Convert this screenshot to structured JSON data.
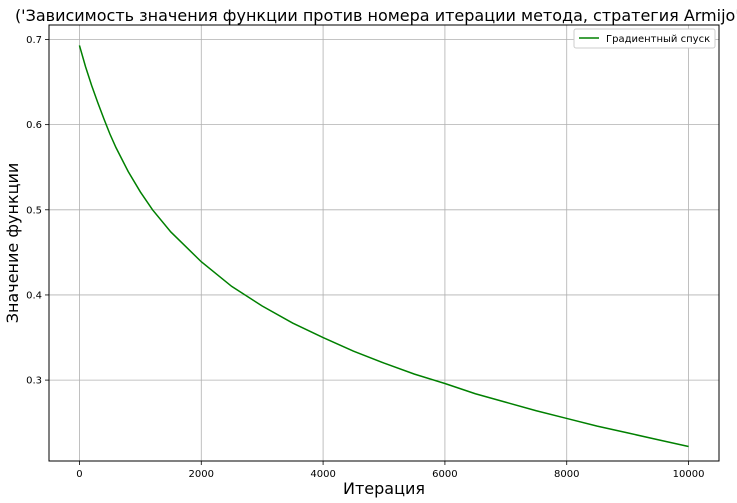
{
  "chart_data": {
    "type": "line",
    "title": "('Зависимость значения функции против номера итерации метода, стратегия Armijo',)",
    "xlabel": "Итерация",
    "ylabel": "Значение функции",
    "xlim": [
      -500,
      10500
    ],
    "ylim": [
      0.205,
      0.717
    ],
    "xticks": [
      0,
      2000,
      4000,
      6000,
      8000,
      10000
    ],
    "yticks": [
      0.3,
      0.4,
      0.5,
      0.6,
      0.7
    ],
    "grid": true,
    "legend_position": "top-right",
    "series": [
      {
        "name": "Градиентный спуск",
        "color": "#008000",
        "x": [
          0,
          100,
          200,
          300,
          400,
          500,
          600,
          800,
          1000,
          1200,
          1500,
          2000,
          2500,
          3000,
          3500,
          4000,
          4500,
          5000,
          5500,
          6000,
          6500,
          7000,
          7500,
          8000,
          8500,
          9000,
          9500,
          10000
        ],
        "y": [
          0.693,
          0.668,
          0.646,
          0.626,
          0.607,
          0.589,
          0.573,
          0.545,
          0.521,
          0.5,
          0.474,
          0.439,
          0.41,
          0.387,
          0.367,
          0.35,
          0.334,
          0.32,
          0.307,
          0.296,
          0.284,
          0.274,
          0.264,
          0.255,
          0.246,
          0.238,
          0.23,
          0.222
        ]
      }
    ]
  }
}
